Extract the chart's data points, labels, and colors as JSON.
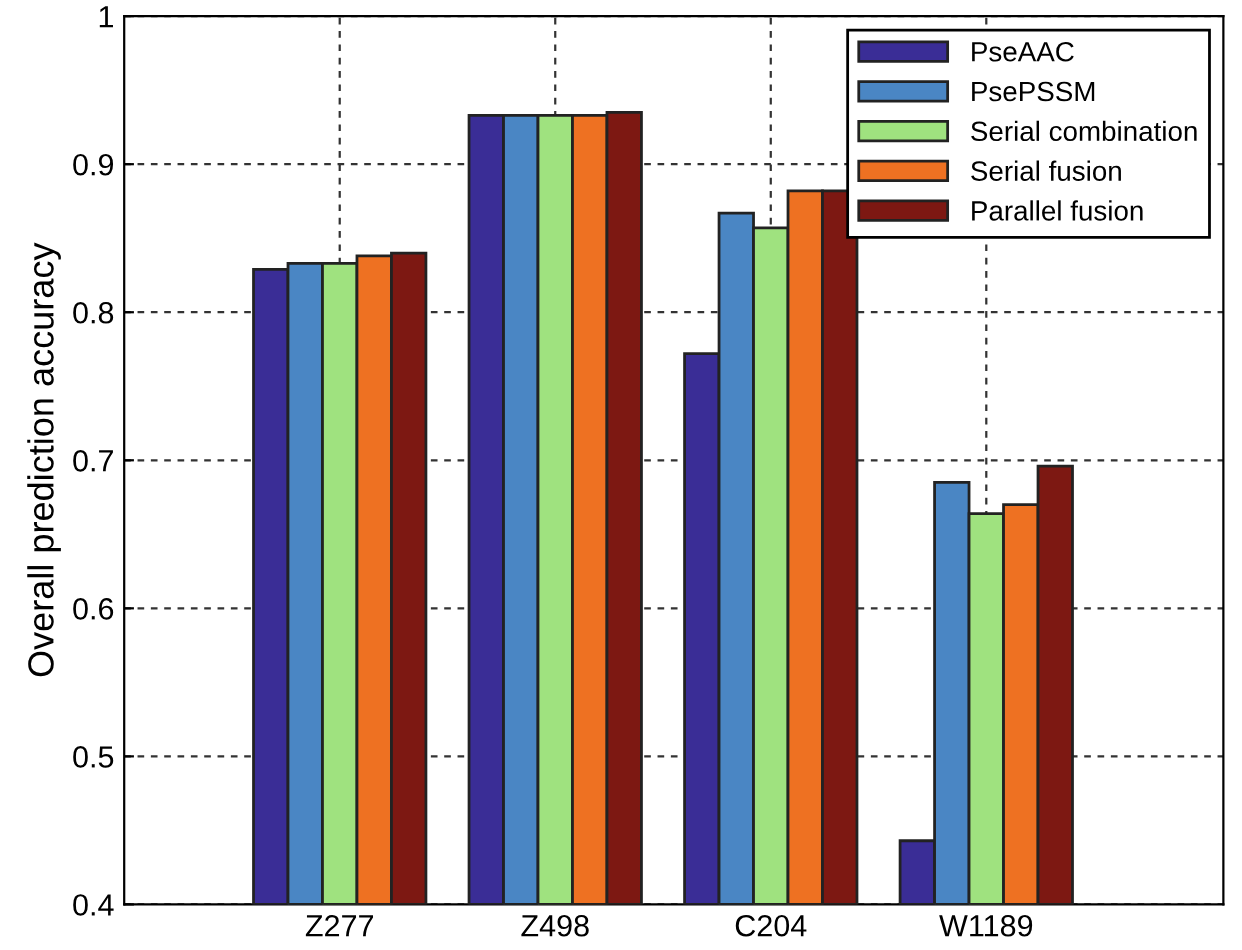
{
  "chart_data": {
    "type": "bar",
    "ylabel": "Overall prediction accuracy",
    "categories": [
      "Z277",
      "Z498",
      "C204",
      "W1189"
    ],
    "series": [
      {
        "name": "PseAAC",
        "color": "#3a2d96",
        "values": [
          0.829,
          0.933,
          0.772,
          0.443
        ]
      },
      {
        "name": "PsePSSM",
        "color": "#4a86c4",
        "values": [
          0.833,
          0.933,
          0.867,
          0.685
        ]
      },
      {
        "name": "Serial combination",
        "color": "#9fe27f",
        "values": [
          0.833,
          0.933,
          0.857,
          0.664
        ]
      },
      {
        "name": "Serial fusion",
        "color": "#ee7122",
        "values": [
          0.838,
          0.933,
          0.882,
          0.67
        ]
      },
      {
        "name": "Parallel fusion",
        "color": "#7d1812",
        "values": [
          0.84,
          0.935,
          0.882,
          0.696
        ]
      }
    ],
    "ylim": [
      0.4,
      1
    ],
    "yticks": [
      0.4,
      0.5,
      0.6,
      0.7,
      0.8,
      0.9,
      1
    ],
    "grid": true,
    "legend": "top right"
  }
}
